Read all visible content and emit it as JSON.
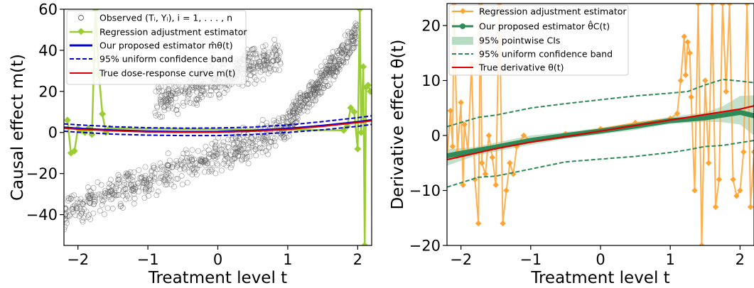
{
  "chart_data": [
    {
      "type": "scatter",
      "xlabel": "Treatment level t",
      "ylabel": "Causal effect m(t)",
      "xlim": [
        -2.2,
        2.2
      ],
      "ylim": [
        -55,
        60
      ],
      "xticks": [
        -2,
        -1,
        0,
        1,
        2
      ],
      "yticks": [
        -40,
        -20,
        0,
        20,
        40,
        60
      ],
      "grid": false,
      "legend_position": "top-center",
      "legend": [
        "Observed (Tᵢ, Yᵢ), i = 1, . . . , n",
        "Regression adjustment estimator",
        "Our proposed estimator m̂θ(t)",
        "95% uniform confidence band",
        "True dose-response curve m(t)"
      ],
      "series": [
        {
          "name": "Observed (Tᵢ, Yᵢ), i = 1, . . . , n",
          "style": "scatter",
          "color": "#555555",
          "clusters": [
            {
              "x": [
                -2.2,
                0.9
              ],
              "y_center": [
                -38,
                0
              ],
              "spread": 10
            },
            {
              "x": [
                -0.9,
                0.9
              ],
              "y_center": [
                14,
                38
              ],
              "spread": 10
            },
            {
              "x": [
                0.9,
                2.0
              ],
              "y_center": [
                0,
                48
              ],
              "spread": 8
            }
          ]
        },
        {
          "name": "Regression adjustment estimator",
          "color": "#9acd32",
          "x": [
            -2.15,
            -2.1,
            -2.05,
            -2.0,
            -1.95,
            -1.9,
            -1.85,
            -1.8,
            -1.75,
            -1.7,
            -1.65,
            -1.6,
            -1.55,
            1.8,
            1.85,
            1.9,
            1.95,
            2.0,
            2.03,
            2.05,
            2.08,
            2.1,
            2.12,
            2.15,
            2.18
          ],
          "y": [
            6,
            -10,
            -9,
            2,
            1,
            0,
            2,
            -1,
            60,
            28,
            9,
            0,
            2,
            1,
            3,
            12,
            10,
            -8,
            60,
            0,
            32,
            -55,
            22,
            23,
            20
          ]
        },
        {
          "name": "Our proposed estimator m̂θ(t)",
          "color": "#0000cc",
          "x": [
            -2.2,
            -2.0,
            -1.5,
            -1.0,
            -0.5,
            0.0,
            0.5,
            1.0,
            1.5,
            2.0,
            2.2
          ],
          "y": [
            2.4,
            1.9,
            1.0,
            0.5,
            0.3,
            0.35,
            0.8,
            1.8,
            3.3,
            5.1,
            6.0
          ]
        },
        {
          "name": "95% uniform confidence band",
          "color": "#0000cc",
          "dashed": true,
          "x": [
            -2.2,
            -2.0,
            -1.5,
            -1.0,
            -0.5,
            0.0,
            0.5,
            1.0,
            1.5,
            2.0,
            2.2
          ],
          "upper": [
            4.2,
            3.7,
            2.8,
            2.3,
            2.1,
            2.2,
            2.6,
            3.6,
            5.3,
            7.2,
            8.1
          ],
          "lower": [
            0.6,
            0.1,
            -0.8,
            -1.3,
            -1.5,
            -1.5,
            -1.0,
            0.0,
            1.3,
            3.0,
            3.9
          ]
        },
        {
          "name": "True dose-response curve m(t)",
          "color": "#dd0000",
          "x": [
            -2.2,
            -2.0,
            -1.5,
            -1.0,
            -0.5,
            0.0,
            0.5,
            1.0,
            1.5,
            2.0,
            2.2
          ],
          "y": [
            2.1,
            1.6,
            0.8,
            0.3,
            0.1,
            0.1,
            0.6,
            1.5,
            3.0,
            4.8,
            5.7
          ]
        }
      ]
    },
    {
      "type": "line",
      "xlabel": "Treatment level t",
      "ylabel": "Derivative effect θ(t)",
      "xlim": [
        -2.2,
        2.2
      ],
      "ylim": [
        -20,
        24
      ],
      "xticks": [
        -2,
        -1,
        0,
        1,
        2
      ],
      "yticks": [
        -20,
        -10,
        0,
        10,
        20
      ],
      "grid": false,
      "legend_position": "top-left",
      "legend": [
        "Regression adjustment estimator",
        "Our proposed estimator θ̂C(t)",
        "95% pointwise CIs",
        "95% uniform confidence band",
        "True derivative θ(t)"
      ],
      "series": [
        {
          "name": "Regression adjustment estimator",
          "color": "#ffa333",
          "x": [
            -2.2,
            -2.15,
            -2.12,
            -2.1,
            -2.05,
            -2.0,
            -1.97,
            -1.95,
            -1.9,
            -1.85,
            -1.8,
            -1.75,
            -1.72,
            -1.7,
            -1.65,
            -1.6,
            -1.55,
            -1.5,
            -1.45,
            -1.4,
            -1.35,
            -1.3,
            -1.25,
            -1.2,
            -1.1,
            -1.0,
            -0.5,
            0.0,
            0.5,
            1.0,
            1.1,
            1.15,
            1.2,
            1.22,
            1.25,
            1.28,
            1.3,
            1.35,
            1.4,
            1.45,
            1.5,
            1.55,
            1.6,
            1.65,
            1.7,
            1.75,
            1.8,
            1.85,
            1.9,
            1.95,
            2.0,
            2.05,
            2.1,
            2.15,
            2.2
          ],
          "y": [
            -4,
            4.5,
            -2,
            24,
            -3,
            6,
            -9,
            2,
            -3,
            13,
            -8,
            -16,
            24,
            -5,
            -7,
            0,
            -4,
            -9,
            24,
            -16,
            -10,
            -5,
            -7,
            -2,
            0,
            -1,
            0.3,
            1.2,
            2.3,
            3.1,
            4,
            10,
            18,
            11,
            17,
            15,
            7,
            -10,
            24,
            -20,
            10,
            -5,
            24,
            -13,
            -8,
            24,
            8,
            24,
            -8,
            -11,
            -10,
            -3,
            24,
            -13,
            -3
          ]
        },
        {
          "name": "Our proposed estimator θ̂C(t)",
          "color": "#2e8b57",
          "x": [
            -2.2,
            -1.5,
            -1.0,
            -0.5,
            0.0,
            0.5,
            1.0,
            1.5,
            1.75,
            2.0,
            2.2
          ],
          "y": [
            -3.7,
            -2.1,
            -0.9,
            0.0,
            0.8,
            1.7,
            2.7,
            3.2,
            3.7,
            4.2,
            3.6
          ]
        },
        {
          "name": "95% pointwise CIs",
          "color": "#b8dbc4",
          "x": [
            -2.2,
            -1.8,
            -1.5,
            -1.0,
            -0.5,
            0.0,
            0.5,
            1.0,
            1.5,
            1.75,
            2.0,
            2.2
          ],
          "upper": [
            -2.5,
            -2.1,
            -1.3,
            0.0,
            0.6,
            1.4,
            2.3,
            3.4,
            4.2,
            5.3,
            7.2,
            7.3
          ],
          "lower": [
            -5.5,
            -3.7,
            -2.9,
            -1.7,
            -0.6,
            0.2,
            1.0,
            2.1,
            2.5,
            2.4,
            2.0,
            0.0
          ]
        },
        {
          "name": "95% uniform confidence band",
          "color": "#2e8b57",
          "dashed": true,
          "x": [
            -2.2,
            -1.75,
            -1.5,
            -1.0,
            -0.5,
            0.0,
            0.5,
            1.0,
            1.25,
            1.5,
            1.75,
            2.0,
            2.2
          ],
          "upper": [
            1.6,
            3.3,
            3.7,
            5.0,
            5.8,
            6.5,
            7.2,
            7.7,
            8.0,
            9.2,
            10.2,
            9.9,
            9.6
          ],
          "lower": [
            -9.4,
            -7.6,
            -7.4,
            -6.1,
            -4.8,
            -4.3,
            -3.8,
            -3.1,
            -2.6,
            -2.0,
            -1.8,
            -1.3,
            -0.9
          ]
        },
        {
          "name": "True derivative θ(t)",
          "color": "#dd0000",
          "x": [
            -2.2,
            -1.5,
            -1.0,
            -0.5,
            0.0,
            0.5,
            1.0,
            1.5,
            2.0,
            2.2
          ],
          "y": [
            -4.4,
            -2.4,
            -1.2,
            -0.2,
            0.8,
            1.8,
            2.8,
            3.8,
            4.8,
            5.4
          ]
        }
      ]
    }
  ]
}
